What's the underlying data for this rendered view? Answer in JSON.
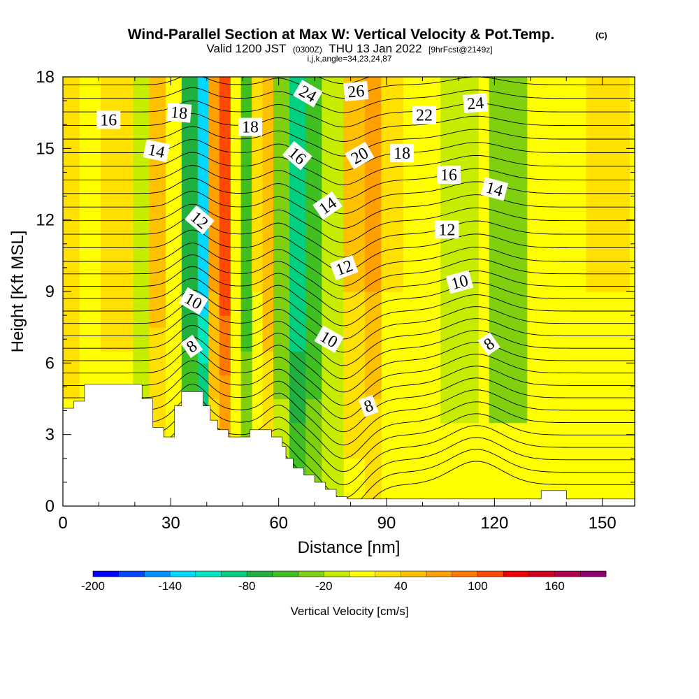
{
  "title": "Wind-Parallel Section at Max W: Vertical Velocity & Pot.Temp.",
  "copyright": "(C)",
  "subtitle": {
    "valid": "Valid 1200 JST",
    "utc": "(0300Z)",
    "date": "THU 13 Jan 2022",
    "forecast": "[9hrFcst@2149z]"
  },
  "index_line": "i,j,k,angle=34,23,24,87",
  "chart_data": {
    "type": "heatmap",
    "xlabel": "Distance [nm]",
    "ylabel": "Height [Kft MSL]",
    "xlim": [
      0,
      159
    ],
    "ylim": [
      0,
      18
    ],
    "x_ticks": [
      0,
      30,
      60,
      90,
      120,
      150
    ],
    "y_ticks": [
      0,
      3,
      6,
      9,
      12,
      15,
      18
    ],
    "grid": false,
    "colorbar": {
      "label": "Vertical Velocity [cm/s]",
      "min": -200,
      "max": 200,
      "step": 20,
      "tick_values": [
        -200,
        -140,
        -80,
        -20,
        40,
        100,
        160
      ],
      "tick_labels": [
        "-200",
        "-140",
        "-80",
        "-20",
        "40",
        "100",
        "160"
      ],
      "colors": [
        "#0000ff",
        "#0048ff",
        "#0090ff",
        "#00d8ff",
        "#00e8c0",
        "#00d080",
        "#20b040",
        "#40c020",
        "#80d010",
        "#c8ec00",
        "#ffff00",
        "#ffe000",
        "#ffc000",
        "#ffa000",
        "#ff7800",
        "#ff4800",
        "#f00000",
        "#d00020",
        "#b00050",
        "#900070"
      ]
    },
    "vertical_velocity_bands_cm_s": [
      {
        "x_center": 2,
        "half_width": 4,
        "value": 30
      },
      {
        "x_center": 7,
        "half_width": 4,
        "value": 10
      },
      {
        "x_center": 15,
        "half_width": 6,
        "value": 25
      },
      {
        "x_center": 22,
        "half_width": 3,
        "value": -15
      },
      {
        "x_center": 27,
        "half_width": 3,
        "value": 45
      },
      {
        "x_center": 31,
        "half_width": 3,
        "value": 15
      },
      {
        "x_center": 35,
        "half_width": 2.5,
        "value": -70
      },
      {
        "x_center": 38.5,
        "half_width": 2,
        "value": -130
      },
      {
        "x_center": 42,
        "half_width": 2,
        "value": 60
      },
      {
        "x_center": 45.5,
        "half_width": 2,
        "value": 110
      },
      {
        "x_center": 48.5,
        "half_width": 1.5,
        "value": 10
      },
      {
        "x_center": 51,
        "half_width": 1.5,
        "value": -50
      },
      {
        "x_center": 54,
        "half_width": 2,
        "value": 20
      },
      {
        "x_center": 57,
        "half_width": 2,
        "value": 50
      },
      {
        "x_center": 61,
        "half_width": 2,
        "value": -30
      },
      {
        "x_center": 65,
        "half_width": 3,
        "value": -100
      },
      {
        "x_center": 70,
        "half_width": 3,
        "value": -60
      },
      {
        "x_center": 75,
        "half_width": 3,
        "value": -20
      },
      {
        "x_center": 81,
        "half_width": 3,
        "value": 40
      },
      {
        "x_center": 86,
        "half_width": 3,
        "value": 60
      },
      {
        "x_center": 91,
        "half_width": 4,
        "value": 20
      },
      {
        "x_center": 100,
        "half_width": 6,
        "value": 5
      },
      {
        "x_center": 110,
        "half_width": 6,
        "value": -5
      },
      {
        "x_center": 124,
        "half_width": 5,
        "value": -35
      },
      {
        "x_center": 138,
        "half_width": 6,
        "value": 10
      },
      {
        "x_center": 152,
        "half_width": 6,
        "value": 20
      }
    ],
    "terrain_kft": [
      [
        0,
        4.1
      ],
      [
        3,
        4.1
      ],
      [
        3,
        4.4
      ],
      [
        6,
        4.4
      ],
      [
        6,
        5.1
      ],
      [
        22,
        5.1
      ],
      [
        22,
        4.5
      ],
      [
        25,
        4.5
      ],
      [
        25,
        3.3
      ],
      [
        28,
        3.3
      ],
      [
        28,
        2.9
      ],
      [
        31,
        2.9
      ],
      [
        31,
        4.2
      ],
      [
        33,
        4.2
      ],
      [
        33,
        4.8
      ],
      [
        39,
        4.8
      ],
      [
        39,
        4.2
      ],
      [
        41,
        4.2
      ],
      [
        41,
        3.6
      ],
      [
        43,
        3.6
      ],
      [
        43,
        3.2
      ],
      [
        46,
        3.2
      ],
      [
        46,
        2.9
      ],
      [
        52,
        2.9
      ],
      [
        52,
        3.2
      ],
      [
        58,
        3.2
      ],
      [
        58,
        2.9
      ],
      [
        61,
        2.9
      ],
      [
        61,
        2.5
      ],
      [
        62,
        2.5
      ],
      [
        62,
        2.0
      ],
      [
        64,
        2.0
      ],
      [
        64,
        1.6
      ],
      [
        67,
        1.6
      ],
      [
        67,
        1.3
      ],
      [
        70,
        1.3
      ],
      [
        70,
        1.0
      ],
      [
        73,
        1.0
      ],
      [
        73,
        0.7
      ],
      [
        76,
        0.7
      ],
      [
        76,
        0.4
      ],
      [
        79,
        0.4
      ],
      [
        79,
        0.3
      ],
      [
        133,
        0.3
      ],
      [
        133,
        0.65
      ],
      [
        140,
        0.65
      ],
      [
        140,
        0.3
      ],
      [
        159,
        0.3
      ]
    ],
    "potential_temperature_contours": [
      {
        "value": 8,
        "labels": [
          {
            "text": "8",
            "x": 35.8,
            "y": 6.7,
            "angle": -35
          },
          {
            "text": "8",
            "x": 85,
            "y": 4.2,
            "angle": -20
          },
          {
            "text": "8",
            "x": 118.5,
            "y": 6.8,
            "angle": -35
          }
        ]
      },
      {
        "value": 10,
        "labels": [
          {
            "text": "10",
            "x": 36.3,
            "y": 8.6,
            "angle": 30
          },
          {
            "text": "10",
            "x": 74,
            "y": 7.0,
            "angle": 30
          },
          {
            "text": "10",
            "x": 110.3,
            "y": 9.4,
            "angle": -15
          }
        ]
      },
      {
        "value": 12,
        "labels": [
          {
            "text": "12",
            "x": 38,
            "y": 12.0,
            "angle": 40
          },
          {
            "text": "12",
            "x": 78.2,
            "y": 10.0,
            "angle": -20
          },
          {
            "text": "12",
            "x": 106.8,
            "y": 11.6,
            "angle": 0
          }
        ]
      },
      {
        "value": 14,
        "labels": [
          {
            "text": "14",
            "x": 26,
            "y": 14.9,
            "angle": 12
          },
          {
            "text": "14",
            "x": 73.6,
            "y": 12.6,
            "angle": -35
          },
          {
            "text": "14",
            "x": 120,
            "y": 13.3,
            "angle": 15
          }
        ]
      },
      {
        "value": 16,
        "labels": [
          {
            "text": "16",
            "x": 12.7,
            "y": 16.2,
            "angle": 0
          },
          {
            "text": "16",
            "x": 65.2,
            "y": 14.7,
            "angle": 40
          },
          {
            "text": "16",
            "x": 107.3,
            "y": 13.9,
            "angle": 0
          }
        ]
      },
      {
        "value": 18,
        "labels": [
          {
            "text": "18",
            "x": 32.3,
            "y": 16.5,
            "angle": 5
          },
          {
            "text": "18",
            "x": 52.1,
            "y": 15.9,
            "angle": 0
          },
          {
            "text": "18",
            "x": 94.3,
            "y": 14.8,
            "angle": 0
          }
        ]
      },
      {
        "value": 20,
        "labels": [
          {
            "text": "20",
            "x": 82.5,
            "y": 14.7,
            "angle": -30
          }
        ]
      },
      {
        "value": 22,
        "labels": [
          {
            "text": "22",
            "x": 100.5,
            "y": 16.4,
            "angle": 0
          }
        ]
      },
      {
        "value": 24,
        "labels": [
          {
            "text": "24",
            "x": 68.1,
            "y": 17.3,
            "angle": 30
          },
          {
            "text": "24",
            "x": 114.7,
            "y": 16.9,
            "angle": -5
          }
        ]
      },
      {
        "value": 26,
        "labels": [
          {
            "text": "26",
            "x": 81.5,
            "y": 17.4,
            "angle": -5
          }
        ]
      }
    ]
  }
}
